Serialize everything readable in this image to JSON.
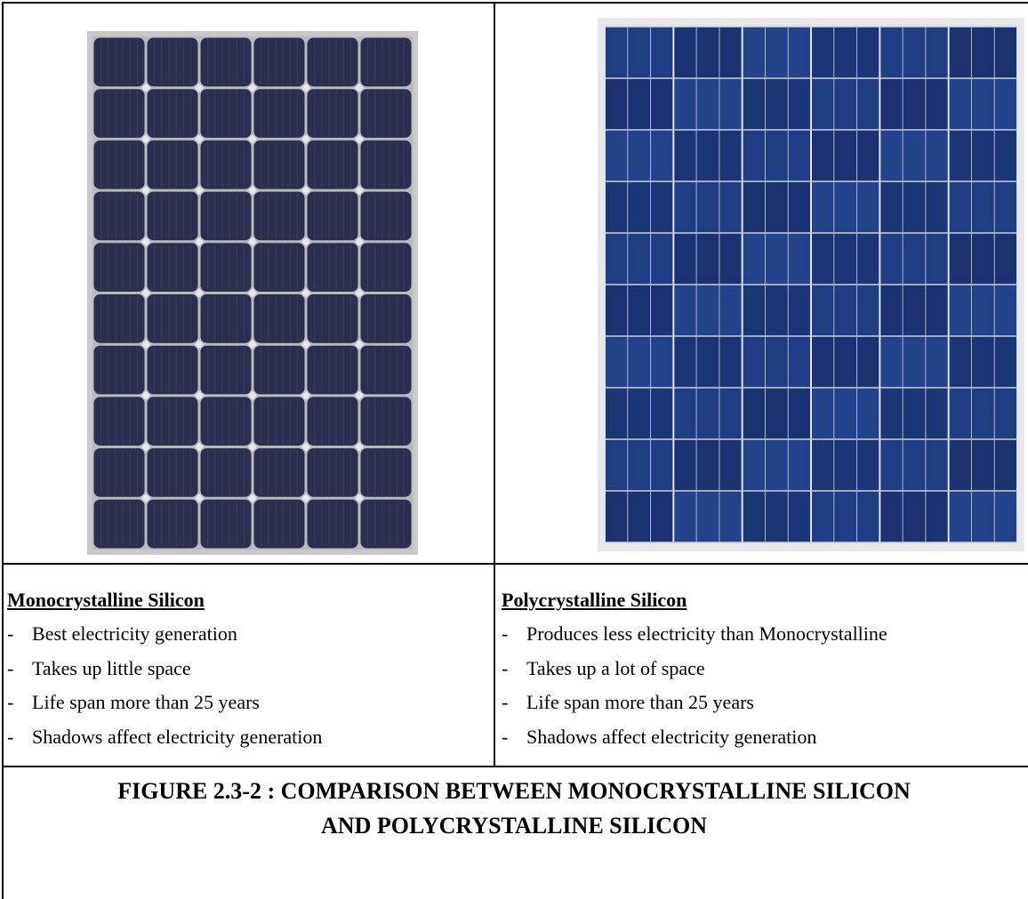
{
  "columns": [
    {
      "heading": "Monocrystalline Silicon",
      "bullets": [
        "Best electricity generation",
        "Takes up little space",
        "Life span more than 25 years",
        "Shadows affect electricity generation"
      ]
    },
    {
      "heading": "Polycrystalline Silicon",
      "bullets": [
        "Produces less electricity than Monocrystalline",
        "Takes up a lot of space",
        "Life span more than 25 years",
        "Shadows affect electricity generation"
      ]
    }
  ],
  "bullet_marker": "-",
  "caption": {
    "lines": [
      "FIGURE 2.3-2 : COMPARISON BETWEEN MONOCRYSTALLINE SILICON",
      "AND POLYCRYSTALLINE SILICON"
    ]
  }
}
